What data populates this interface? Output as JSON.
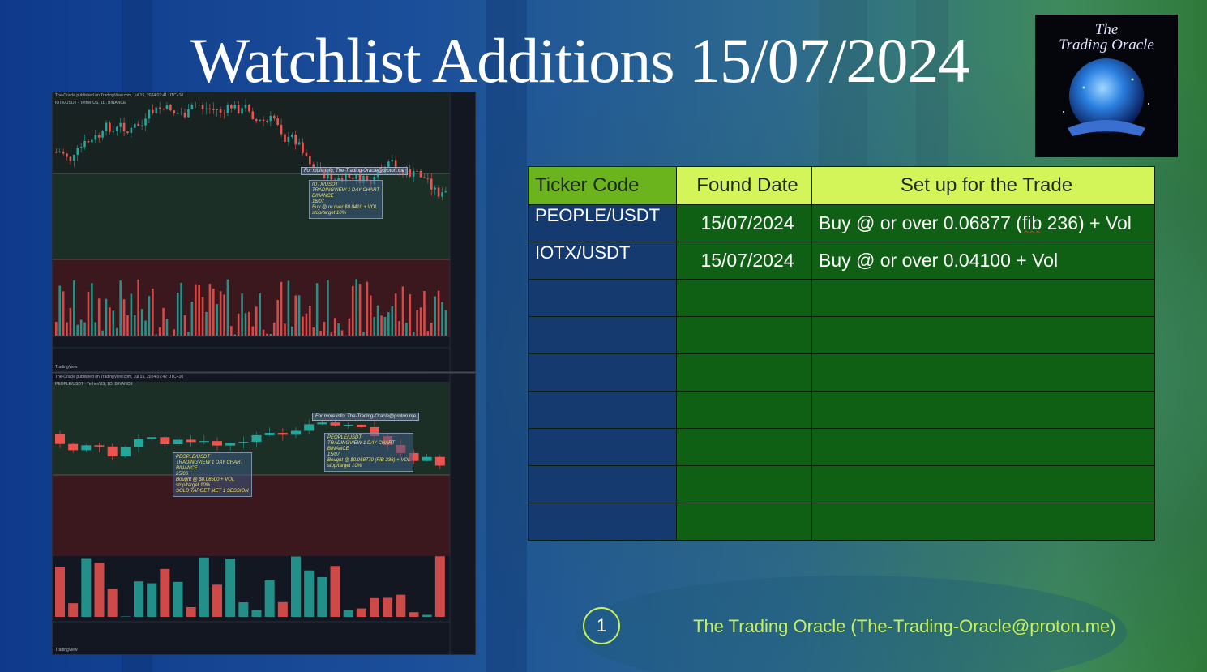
{
  "title": "Watchlist Additions  15/07/2024",
  "logo": {
    "line1": "The",
    "line2": "Trading Oracle"
  },
  "table": {
    "headers": [
      "Ticker Code",
      "Found Date",
      "Set up for the Trade"
    ],
    "rows": [
      {
        "ticker": "PEOPLE/USDT",
        "date": "15/07/2024",
        "setup_pre": "Buy @ or over 0.06877 (",
        "setup_marked": "fib",
        "setup_post": " 236) + Vol"
      },
      {
        "ticker": "IOTX/USDT",
        "date": "15/07/2024",
        "setup_pre": "Buy @ or over 0.04100 + Vol",
        "setup_marked": "",
        "setup_post": ""
      }
    ],
    "empty_rows": 7
  },
  "charts": [
    {
      "header": "The-Oracle published on TradingView.com, Jul 15, 2024 07:41 UTC+10",
      "symbol": "IOTX/USDT · Tether/US, 1D, BINANCE",
      "info_text": "For more info; The-Trading-Oracle@proton.me",
      "note": "IOTX/USDT\nTRADINGVIEW 1 DAY CHART\nBINANCE\n16/07\nBuy @ or over $0.0410 + VOL\nstop/target 10%",
      "footer": "TradingView"
    },
    {
      "header": "The-Oracle published on TradingView.com, Jul 15, 2024 07:42 UTC+10",
      "symbol": "PEOPLE/USDT · Tether/US, 1D, BINANCE",
      "info_text": "For more info; The-Trading-Oracle@proton.me",
      "note": "PEOPLE/USDT\nTRADINGVIEW 1 DAY CHART\nBINANCE\n15/07\nBought @ $0.068770 (FIB 236) + VOL\nstop/target 10%",
      "note2": "PEOPLE/USDT\nTRADINGVIEW 1 DAY CHART\nBINANCE\n25/06\nBought @ $0.08500 + VOL\nstop/target 10%\nSOLD TARGET MET 1 SESSION",
      "footer": "TradingView"
    }
  ],
  "page_number": "1",
  "footer": "The Trading Oracle (The-Trading-Oracle@proton.me)",
  "colors": {
    "up": "#26a69a",
    "down": "#ef5350",
    "accent": "#c5f05a"
  }
}
